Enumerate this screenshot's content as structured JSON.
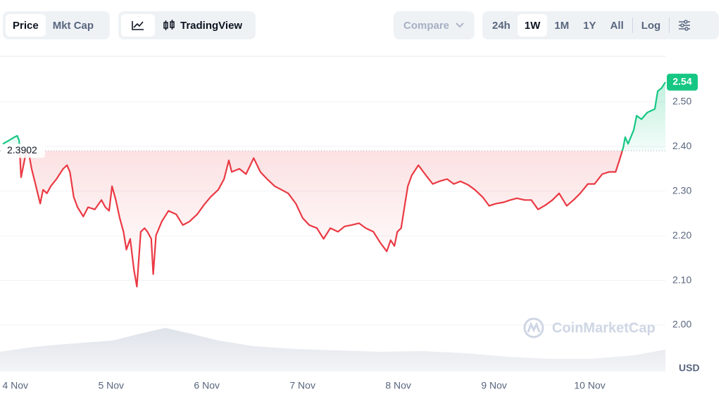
{
  "toolbar": {
    "tabs": [
      "Price",
      "Mkt Cap"
    ],
    "chart_style": "TradingView",
    "compare": "Compare",
    "ranges": [
      "24h",
      "1W",
      "1M",
      "1Y",
      "All"
    ],
    "log": "Log"
  },
  "chart_data": {
    "type": "line",
    "watermark": "CoinMarketCap",
    "y_unit": "USD",
    "x": [
      -0.13,
      -0.07,
      -0.01,
      0.02,
      0.04,
      0.06,
      0.1,
      0.13,
      0.17,
      0.21,
      0.26,
      0.29,
      0.33,
      0.37,
      0.43,
      0.5,
      0.54,
      0.57,
      0.61,
      0.65,
      0.71,
      0.76,
      0.83,
      0.9,
      0.94,
      0.98,
      1.01,
      1.05,
      1.09,
      1.13,
      1.16,
      1.2,
      1.24,
      1.27,
      1.31,
      1.35,
      1.38,
      1.42,
      1.44,
      1.47,
      1.53,
      1.6,
      1.68,
      1.75,
      1.82,
      1.9,
      1.97,
      2.04,
      2.12,
      2.18,
      2.23,
      2.26,
      2.34,
      2.41,
      2.49,
      2.56,
      2.63,
      2.71,
      2.78,
      2.85,
      2.93,
      3.0,
      3.07,
      3.15,
      3.22,
      3.29,
      3.37,
      3.44,
      3.51,
      3.59,
      3.66,
      3.74,
      3.81,
      3.88,
      3.92,
      3.96,
      3.99,
      4.03,
      4.07,
      4.1,
      4.14,
      4.21,
      4.29,
      4.36,
      4.43,
      4.51,
      4.58,
      4.65,
      4.73,
      4.8,
      4.88,
      4.95,
      5.02,
      5.1,
      5.17,
      5.24,
      5.32,
      5.39,
      5.46,
      5.54,
      5.61,
      5.68,
      5.76,
      5.83,
      5.9,
      5.98,
      6.05,
      6.13,
      6.2,
      6.27,
      6.31,
      6.35,
      6.37,
      6.4,
      6.46,
      6.49,
      6.54,
      6.6,
      6.68,
      6.71,
      6.75,
      6.79
    ],
    "values": [
      2.406,
      2.413,
      2.421,
      2.424,
      2.413,
      2.331,
      2.374,
      2.398,
      2.35,
      2.316,
      2.272,
      2.303,
      2.295,
      2.311,
      2.327,
      2.35,
      2.358,
      2.343,
      2.287,
      2.264,
      2.243,
      2.264,
      2.259,
      2.28,
      2.264,
      2.256,
      2.311,
      2.28,
      2.24,
      2.209,
      2.169,
      2.193,
      2.122,
      2.086,
      2.209,
      2.217,
      2.209,
      2.193,
      2.114,
      2.201,
      2.232,
      2.256,
      2.248,
      2.224,
      2.232,
      2.248,
      2.269,
      2.287,
      2.303,
      2.327,
      2.369,
      2.343,
      2.35,
      2.338,
      2.374,
      2.343,
      2.327,
      2.311,
      2.303,
      2.295,
      2.272,
      2.24,
      2.224,
      2.217,
      2.193,
      2.217,
      2.209,
      2.221,
      2.224,
      2.228,
      2.217,
      2.209,
      2.185,
      2.165,
      2.19,
      2.177,
      2.209,
      2.217,
      2.272,
      2.311,
      2.335,
      2.358,
      2.335,
      2.316,
      2.322,
      2.327,
      2.316,
      2.322,
      2.314,
      2.303,
      2.287,
      2.267,
      2.272,
      2.275,
      2.28,
      2.284,
      2.28,
      2.28,
      2.259,
      2.269,
      2.28,
      2.295,
      2.267,
      2.28,
      2.295,
      2.316,
      2.316,
      2.338,
      2.343,
      2.343,
      2.369,
      2.398,
      2.421,
      2.406,
      2.437,
      2.469,
      2.461,
      2.476,
      2.484,
      2.524,
      2.531,
      2.544
    ],
    "value_labels_last": "2.54",
    "baseline": 2.3902,
    "up_color": "#16c784",
    "down_color": "#ea3943",
    "xlim": [
      -0.16,
      6.79
    ],
    "xticks": [
      {
        "value": 0,
        "label": "4 Nov"
      },
      {
        "value": 1,
        "label": "5 Nov"
      },
      {
        "value": 2,
        "label": "6 Nov"
      },
      {
        "value": 3,
        "label": "7 Nov"
      },
      {
        "value": 4,
        "label": "8 Nov"
      },
      {
        "value": 5,
        "label": "9 Nov"
      },
      {
        "value": 6,
        "label": "10 Nov"
      }
    ],
    "ylim": [
      1.896,
      2.602
    ],
    "yticks": [
      {
        "value": 2.0,
        "label": "2.00"
      },
      {
        "value": 2.1,
        "label": "2.10"
      },
      {
        "value": 2.2,
        "label": "2.20"
      },
      {
        "value": 2.3,
        "label": "2.30"
      },
      {
        "value": 2.4,
        "label": "2.40"
      },
      {
        "value": 2.5,
        "label": "2.50"
      }
    ],
    "grid": true
  }
}
